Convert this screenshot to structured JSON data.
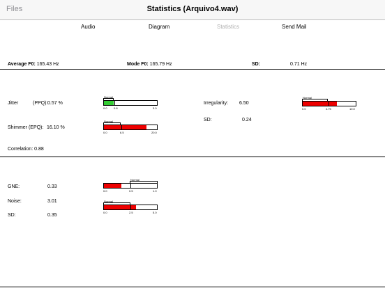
{
  "nav": {
    "back_label": "Files",
    "title": "Statistics (Arquivo4.wav)"
  },
  "tabs": [
    {
      "label": "Audio"
    },
    {
      "label": "Diagram"
    },
    {
      "label": "Statistics"
    },
    {
      "label": "Send Mail"
    }
  ],
  "summary": {
    "average_f0_label": "Average F0:",
    "average_f0_value": "165.43 Hz",
    "mode_f0_label": "Mode F0:",
    "mode_f0_value": "165.79 Hz",
    "sd_label": "SD:",
    "sd_value": "0.71 Hz"
  },
  "section1": {
    "jitter_label": "Jitter",
    "jitter_type": "(PPQ):",
    "jitter_value": "0.57 %",
    "shimmer_label": "Shimmer (EPQ):",
    "shimmer_value": "16.10 %",
    "correlation_label": "Correlation:",
    "correlation_value": "0.88",
    "irregularity_label": "Irregularity:",
    "irregularity_value": "6.50",
    "sd_label": "SD:",
    "sd_value": "0.24"
  },
  "section2": {
    "gne_label": "GNE:",
    "gne_value": "0.33",
    "noise_label": "Noise:",
    "noise_value": "3.01",
    "sd_label": "SD:",
    "sd_value": "0.35"
  },
  "gauges": {
    "normal_label": "Normal",
    "jitter": {
      "scale": [
        "0.0",
        "0.8",
        "3.0"
      ],
      "fill_fraction": 0.19,
      "color": "#33cc33"
    },
    "shimmer": {
      "scale": [
        "0.0",
        "6.5",
        "20.0"
      ],
      "fill_fraction": 0.805,
      "color": "#ee0000"
    },
    "irregularity": {
      "scale": [
        "0.0",
        "4.75",
        "10.0"
      ],
      "fill_fraction": 0.65,
      "color": "#ee0000"
    },
    "gne": {
      "scale": [
        "0.0",
        "0.5",
        "1.0"
      ],
      "fill_fraction": 0.33,
      "color": "#ee0000"
    },
    "noise": {
      "scale": [
        "0.0",
        "2.5",
        "5.0"
      ],
      "fill_fraction": 0.6,
      "color": "#ee0000"
    }
  }
}
